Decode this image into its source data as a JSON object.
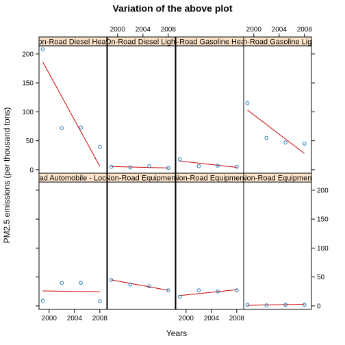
{
  "chart_data": {
    "type": "scatter",
    "title": "Variation of the above plot",
    "xlabel": "Years",
    "ylabel": "PM2.5 emissions (per thousand tons)",
    "x_ticks": [
      2000,
      2004,
      2008
    ],
    "y_ticks": [
      0,
      50,
      100,
      150,
      200
    ],
    "xlim": [
      1998.4,
      2009.1
    ],
    "ylim": [
      -6,
      214
    ],
    "layout": {
      "columns": 4,
      "rows": 2
    },
    "grid": false,
    "colors": {
      "points": "#1f77b4",
      "fit_line": "#cc0000",
      "strip": "#ffe5cc"
    },
    "panels": [
      {
        "label": "Non-Road Diesel Heavy",
        "x": [
          1999,
          2002,
          2005,
          2008
        ],
        "y": [
          208,
          72,
          73,
          39
        ],
        "fit": [
          [
            1999,
            186
          ],
          [
            2008,
            6
          ]
        ]
      },
      {
        "label": "On-Road Diesel Light",
        "x": [
          1999,
          2002,
          2005,
          2008
        ],
        "y": [
          5,
          4,
          6,
          3
        ],
        "fit": [
          [
            1999,
            5.5
          ],
          [
            2008,
            3
          ]
        ]
      },
      {
        "label": "On-Road Gasoline Heavy",
        "x": [
          1999,
          2002,
          2005,
          2008
        ],
        "y": [
          18,
          6,
          7,
          5
        ],
        "fit": [
          [
            1999,
            15
          ],
          [
            2008,
            4
          ]
        ]
      },
      {
        "label": "On-Road Gasoline Light",
        "x": [
          1999,
          2002,
          2005,
          2008
        ],
        "y": [
          115,
          55,
          47,
          45
        ],
        "fit": [
          [
            1999,
            103
          ],
          [
            2008,
            28
          ]
        ]
      },
      {
        "label": "Non-Road Automobile - Locomotive",
        "x": [
          1999,
          2002,
          2005,
          2008
        ],
        "y": [
          9,
          40,
          40,
          8
        ],
        "fit": [
          [
            1999,
            26
          ],
          [
            2008,
            24.5
          ]
        ]
      },
      {
        "label": "Non-Road Equipment",
        "x": [
          1999,
          2002,
          2005,
          2008
        ],
        "y": [
          45,
          37,
          34,
          27
        ],
        "fit": [
          [
            1999,
            45
          ],
          [
            2008,
            27
          ]
        ]
      },
      {
        "label": "Non-Road Equipment",
        "x": [
          1999,
          2002,
          2005,
          2008
        ],
        "y": [
          16,
          27,
          25,
          27
        ],
        "fit": [
          [
            1999,
            18
          ],
          [
            2008,
            28
          ]
        ]
      },
      {
        "label": "Non-Road Equipment",
        "x": [
          1999,
          2002,
          2005,
          2008
        ],
        "y": [
          2,
          1,
          2,
          2
        ],
        "fit": [
          [
            1999,
            1
          ],
          [
            2008,
            3
          ]
        ]
      }
    ]
  }
}
